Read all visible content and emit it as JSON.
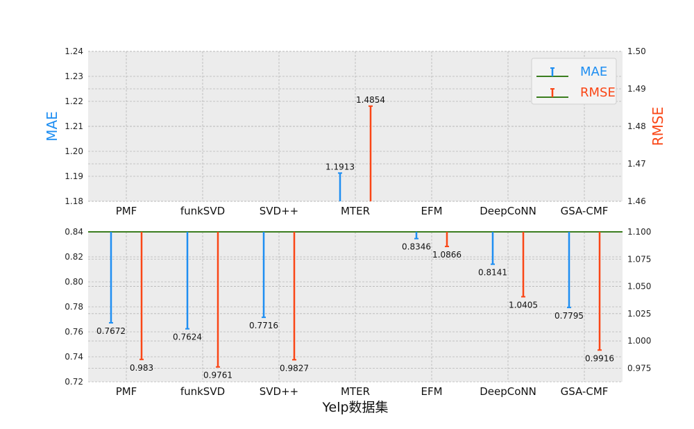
{
  "colors": {
    "mae": "#1e8ef2",
    "rmse": "#fa4616",
    "baseline": "#3a7d1e",
    "panel_bg": "#ececec"
  },
  "chart_data": [
    {
      "type": "bar",
      "panel": "top",
      "categories": [
        "PMF",
        "funkSVD",
        "SVD++",
        "MTER",
        "EFM",
        "DeepCoNN",
        "GSA-CMF"
      ],
      "ylabel": "MAE",
      "y2label": "RMSE",
      "ylim": [
        1.18,
        1.24
      ],
      "y2lim": [
        1.46,
        1.5
      ],
      "yticks": [
        "1.18",
        "1.19",
        "1.20",
        "1.21",
        "1.22",
        "1.23",
        "1.24"
      ],
      "y2ticks": [
        "1.46",
        "1.47",
        "1.48",
        "1.49",
        "1.50"
      ],
      "series": [
        {
          "name": "MAE",
          "axis": "left",
          "values": [
            null,
            null,
            null,
            1.1913,
            null,
            null,
            null
          ],
          "labels": [
            "",
            "",
            "",
            "1.1913",
            "",
            "",
            ""
          ]
        },
        {
          "name": "RMSE",
          "axis": "right",
          "values": [
            null,
            null,
            null,
            1.4854,
            null,
            null,
            null
          ],
          "labels": [
            "",
            "",
            "",
            "1.4854",
            "",
            "",
            ""
          ]
        }
      ],
      "legend": "top-right",
      "grid": true
    },
    {
      "type": "bar",
      "panel": "bottom",
      "categories": [
        "PMF",
        "funkSVD",
        "SVD++",
        "MTER",
        "EFM",
        "DeepCoNN",
        "GSA-CMF"
      ],
      "xlabel": "Yelp数据集",
      "ylim": [
        0.72,
        0.84
      ],
      "y2lim": [
        0.9625,
        1.1
      ],
      "yticks": [
        "0.72",
        "0.74",
        "0.76",
        "0.78",
        "0.80",
        "0.82",
        "0.84"
      ],
      "y2ticks": [
        "0.975",
        "1.000",
        "1.025",
        "1.050",
        "1.075",
        "1.100"
      ],
      "series": [
        {
          "name": "MAE",
          "axis": "left",
          "values": [
            0.7672,
            0.7624,
            0.7716,
            null,
            0.8346,
            0.8141,
            0.7795
          ],
          "labels": [
            "0.7672",
            "0.7624",
            "0.7716",
            "",
            "0.8346",
            "0.8141",
            "0.7795"
          ]
        },
        {
          "name": "RMSE",
          "axis": "right",
          "values": [
            0.983,
            0.9761,
            0.9827,
            null,
            1.0866,
            1.0405,
            0.9916
          ],
          "labels": [
            "0.983",
            "0.9761",
            "0.9827",
            "",
            "1.0866",
            "1.0405",
            "0.9916"
          ]
        }
      ],
      "grid": true
    }
  ]
}
